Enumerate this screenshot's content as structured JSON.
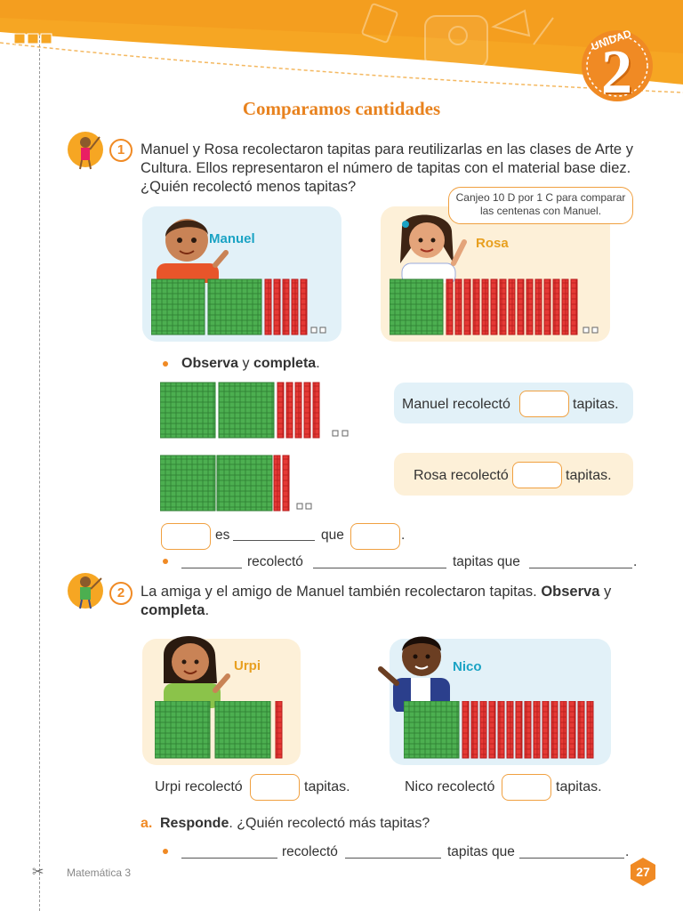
{
  "header": {
    "unit_word": "UNIDAD",
    "unit_number": "2"
  },
  "title": "Comparamos cantidades",
  "q1": {
    "number": "1",
    "text_l1": "Manuel y Rosa recolectaron tapitas para reutilizarlas en las clases de Arte y",
    "text_l2": "Cultura. Ellos representaron el número de tapitas con el material base diez.",
    "text_l3": "¿Quién recolectó menos tapitas?",
    "manuel_name": "Manuel",
    "rosa_name": "Rosa",
    "rosa_bubble": "Canjeo 10 D por 1 C para comparar las centenas con Manuel.",
    "instruction_pre": "Observa",
    "instruction_mid": " y ",
    "instruction_post": "completa",
    "instruction_end": ".",
    "manuel_line_pre": "Manuel recolectó",
    "manuel_line_post": "tapitas.",
    "rosa_line_pre": "Rosa recolectó",
    "rosa_line_post": "tapitas.",
    "compare_es": "es",
    "compare_que": "que",
    "compare_end": ".",
    "sentence_recolecto": "recolectó",
    "sentence_tapitas_que": "tapitas que",
    "sentence_end": "."
  },
  "q2": {
    "number": "2",
    "text_l1_a": "La amiga y el amigo de Manuel también recolectaron tapitas. ",
    "text_l1_b": "Observa",
    "text_l1_c": " y",
    "text_l2": "completa",
    "text_l2_end": ".",
    "urpi_name": "Urpi",
    "nico_name": "Nico",
    "urpi_line_pre": "Urpi recolectó",
    "urpi_line_post": "tapitas.",
    "nico_line_pre": "Nico recolectó",
    "nico_line_post": "tapitas.",
    "a_label": "a.",
    "a_bold": "Responde",
    "a_text": ". ¿Quién recolectó más tapitas?",
    "sentence_recolecto": "recolectó",
    "sentence_tapitas_que": "tapitas que",
    "sentence_end": "."
  },
  "footer": {
    "book": "Matemática 3",
    "page": "27"
  },
  "colors": {
    "orange": "#f08a24",
    "green": "#4caf50",
    "red": "#e53935",
    "blue_card": "#e2f1f8",
    "cream_card": "#fdf0d8"
  }
}
